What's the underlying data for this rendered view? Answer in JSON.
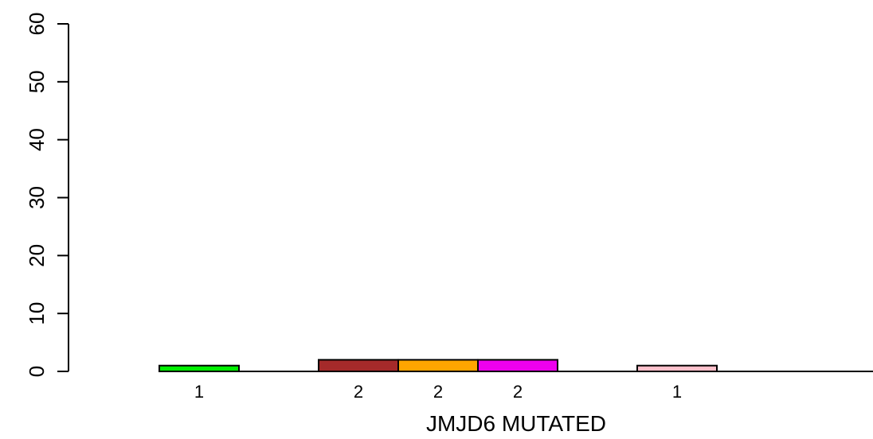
{
  "chart_data": {
    "type": "bar",
    "xlabel": "JMJD6 MUTATED",
    "ylabel": "",
    "ylim": [
      0,
      60
    ],
    "yticks": [
      0,
      10,
      20,
      30,
      40,
      50,
      60
    ],
    "grid": false,
    "bars": [
      {
        "value": 1,
        "label": "1",
        "color": "#00ee00",
        "slot": 2
      },
      {
        "value": 2,
        "label": "2",
        "color": "#a52a2a",
        "slot": 4
      },
      {
        "value": 2,
        "label": "2",
        "color": "#ffa500",
        "slot": 5
      },
      {
        "value": 2,
        "label": "2",
        "color": "#ee00ee",
        "slot": 6
      },
      {
        "value": 1,
        "label": "1",
        "color": "#ffc0cb",
        "slot": 8
      }
    ]
  }
}
